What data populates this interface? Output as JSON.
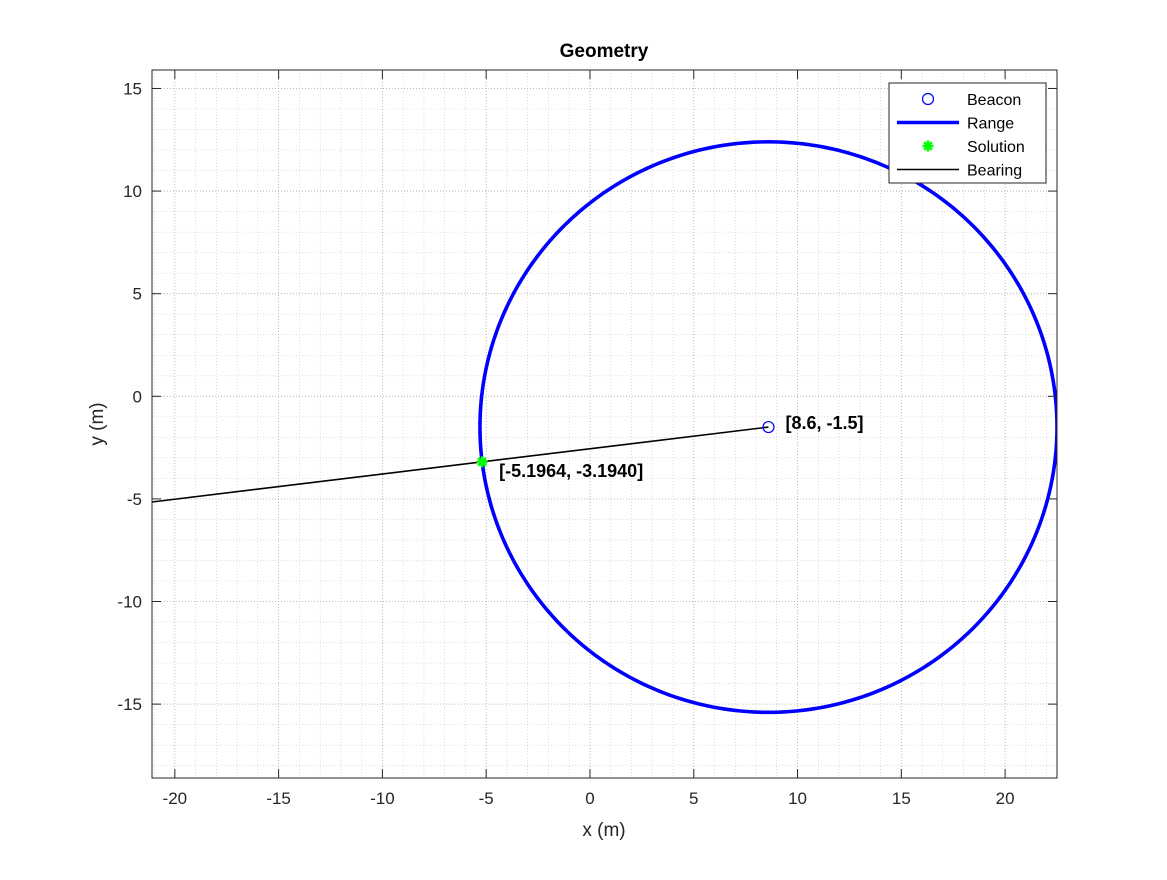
{
  "chart_data": {
    "type": "scatter",
    "title": "Geometry",
    "xlabel": "x (m)",
    "ylabel": "y (m)",
    "xlim": [
      -21.1,
      22.5
    ],
    "ylim": [
      -18.6,
      15.9
    ],
    "xticks": [
      -20,
      -15,
      -10,
      -5,
      0,
      5,
      10,
      15,
      20
    ],
    "yticks": [
      -15,
      -10,
      -5,
      0,
      5,
      10,
      15
    ],
    "grid": "on",
    "minor_grid": "on",
    "legend_position": "top-right",
    "series": [
      {
        "name": "Beacon",
        "kind": "marker",
        "marker": "circle",
        "color": "#0000ff",
        "x": [
          8.6
        ],
        "y": [
          -1.5
        ]
      },
      {
        "name": "Range",
        "kind": "circle",
        "color": "#0000ff",
        "center": [
          8.6,
          -1.5
        ],
        "radius": 13.9
      },
      {
        "name": "Solution",
        "kind": "marker",
        "marker": "asterisk",
        "color": "#00ff00",
        "x": [
          -5.1964
        ],
        "y": [
          -3.194
        ]
      },
      {
        "name": "Bearing",
        "kind": "line",
        "color": "#000000",
        "x": [
          8.6,
          -21.1
        ],
        "y": [
          -1.5,
          -5.15
        ]
      }
    ],
    "annotations": [
      {
        "text": "[8.6, -1.5]",
        "x": 8.6,
        "y": -1.5
      },
      {
        "text": "[-5.1964, -3.1940]",
        "x": -5.1964,
        "y": -3.194
      }
    ]
  }
}
